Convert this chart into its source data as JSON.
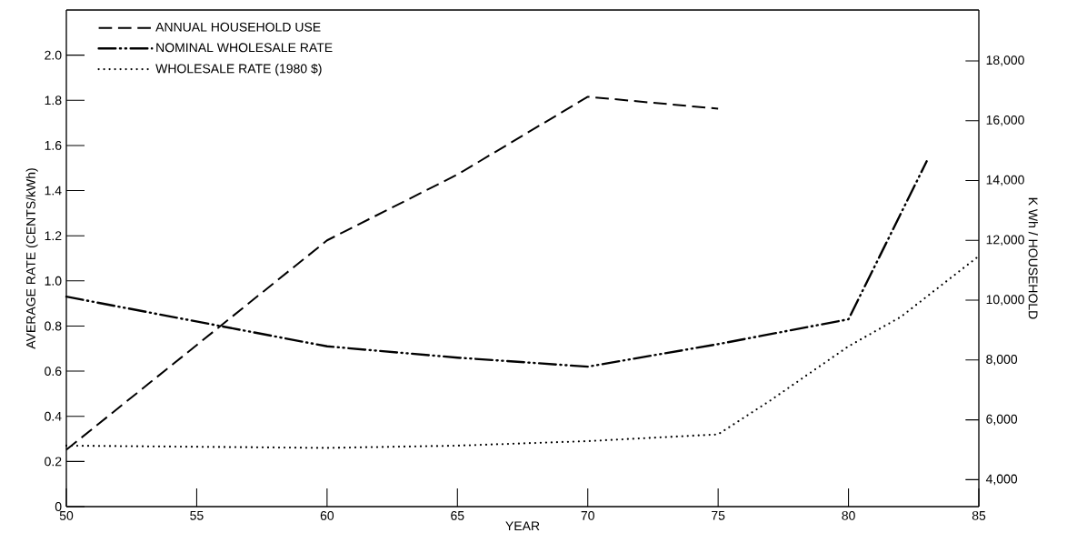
{
  "chart_data": {
    "type": "line",
    "xlabel": "YEAR",
    "ylabel": "AVERAGE RATE (CENTS/kWh)",
    "y2label": "K Wh / HOUSEHOLD",
    "xlim": [
      50,
      85
    ],
    "xticks": [
      50,
      55,
      60,
      65,
      70,
      75,
      80,
      85
    ],
    "ylim": [
      0,
      2.2
    ],
    "yticks": [
      0,
      0.2,
      0.4,
      0.6,
      0.8,
      {
        "value": 1.0,
        "label": "1.0"
      },
      1.2,
      1.4,
      1.6,
      1.8,
      {
        "value": 2.0,
        "label": "2.0"
      }
    ],
    "y2lim": [
      3100,
      19700
    ],
    "y2ticks": [
      {
        "value": 4000,
        "label": "4,000"
      },
      {
        "value": 6000,
        "label": "6,000"
      },
      {
        "value": 8000,
        "label": "8,000"
      },
      {
        "value": 10000,
        "label": "10,000"
      },
      {
        "value": 12000,
        "label": "12,000"
      },
      {
        "value": 14000,
        "label": "14,000"
      },
      {
        "value": 16000,
        "label": "16,000"
      },
      {
        "value": 18000,
        "label": "18,000"
      }
    ],
    "legend": "top left",
    "series": [
      {
        "name": "ANNUAL HOUSEHOLD USE",
        "color": "#000000",
        "axis": "y2",
        "line_style": "dashed",
        "x": [
          50,
          60,
          65,
          70,
          75
        ],
        "values": [
          5000,
          12000,
          14200,
          16800,
          16400
        ]
      },
      {
        "name": "NOMINAL WHOLESALE RATE",
        "color": "#000000",
        "line_style": "dashdotted",
        "x": [
          50,
          60,
          65,
          70,
          75,
          80,
          83
        ],
        "values": [
          0.93,
          0.71,
          0.66,
          0.62,
          0.72,
          0.83,
          1.53
        ]
      },
      {
        "name": "WHOLESALE RATE (1980 $)",
        "color": "#000000",
        "line_style": "dotted",
        "x": [
          50,
          60,
          65,
          70,
          75,
          77,
          80,
          82,
          84,
          85
        ],
        "values": [
          0.27,
          0.26,
          0.27,
          0.29,
          0.32,
          0.47,
          0.71,
          0.84,
          1.02,
          1.11
        ]
      }
    ]
  }
}
